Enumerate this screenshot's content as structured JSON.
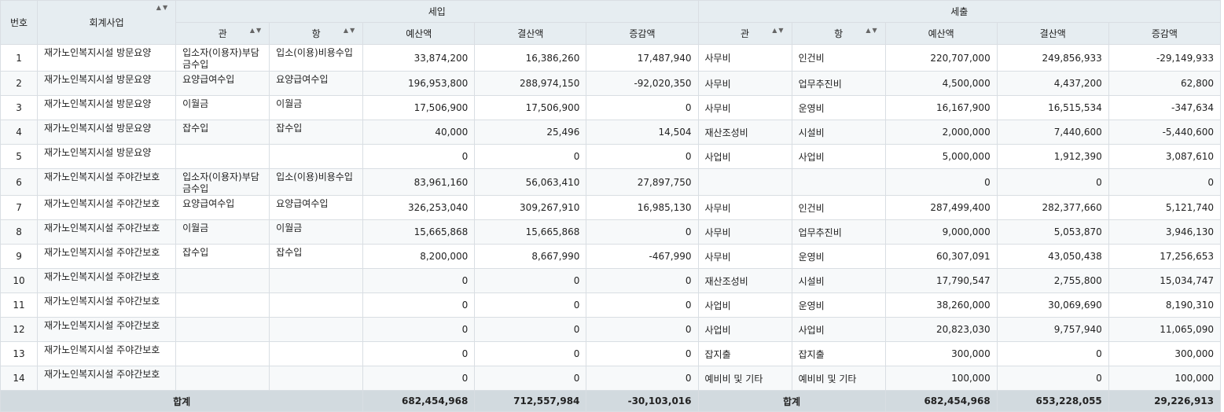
{
  "headers": {
    "no": "번호",
    "project": "회계사업",
    "income": "세입",
    "expense": "세출",
    "gwan": "관",
    "hang": "항",
    "budget": "예산액",
    "settle": "결산액",
    "diff": "증감액",
    "sort_icon": "▲",
    "filter_icon": "▼"
  },
  "rows": [
    {
      "no": "1",
      "project": "재가노인복지시설 방문요양",
      "in_gwan": "입소자(이용자)부담금수입",
      "in_hang": "입소(이용)비용수입",
      "in_budget": "33,874,200",
      "in_settle": "16,386,260",
      "in_diff": "17,487,940",
      "out_gwan": "사무비",
      "out_hang": "인건비",
      "out_budget": "220,707,000",
      "out_settle": "249,856,933",
      "out_diff": "-29,149,933"
    },
    {
      "no": "2",
      "project": "재가노인복지시설 방문요양",
      "in_gwan": "요양급여수입",
      "in_hang": "요양급여수입",
      "in_budget": "196,953,800",
      "in_settle": "288,974,150",
      "in_diff": "-92,020,350",
      "out_gwan": "사무비",
      "out_hang": "업무추진비",
      "out_budget": "4,500,000",
      "out_settle": "4,437,200",
      "out_diff": "62,800"
    },
    {
      "no": "3",
      "project": "재가노인복지시설 방문요양",
      "in_gwan": "이월금",
      "in_hang": "이월금",
      "in_budget": "17,506,900",
      "in_settle": "17,506,900",
      "in_diff": "0",
      "out_gwan": "사무비",
      "out_hang": "운영비",
      "out_budget": "16,167,900",
      "out_settle": "16,515,534",
      "out_diff": "-347,634"
    },
    {
      "no": "4",
      "project": "재가노인복지시설 방문요양",
      "in_gwan": "잡수입",
      "in_hang": "잡수입",
      "in_budget": "40,000",
      "in_settle": "25,496",
      "in_diff": "14,504",
      "out_gwan": "재산조성비",
      "out_hang": "시설비",
      "out_budget": "2,000,000",
      "out_settle": "7,440,600",
      "out_diff": "-5,440,600"
    },
    {
      "no": "5",
      "project": "재가노인복지시설 방문요양",
      "in_gwan": "",
      "in_hang": "",
      "in_budget": "0",
      "in_settle": "0",
      "in_diff": "0",
      "out_gwan": "사업비",
      "out_hang": " 사업비",
      "out_budget": "5,000,000",
      "out_settle": "1,912,390",
      "out_diff": "3,087,610"
    },
    {
      "no": "6",
      "project": "재가노인복지시설 주야간보호",
      "in_gwan": "입소자(이용자)부담금수입",
      "in_hang": "입소(이용)비용수입",
      "in_budget": "83,961,160",
      "in_settle": "56,063,410",
      "in_diff": "27,897,750",
      "out_gwan": "",
      "out_hang": "",
      "out_budget": "0",
      "out_settle": "0",
      "out_diff": "0"
    },
    {
      "no": "7",
      "project": "재가노인복지시설 주야간보호",
      "in_gwan": "요양급여수입",
      "in_hang": "요양급여수입",
      "in_budget": "326,253,040",
      "in_settle": "309,267,910",
      "in_diff": "16,985,130",
      "out_gwan": "사무비",
      "out_hang": "인건비",
      "out_budget": "287,499,400",
      "out_settle": "282,377,660",
      "out_diff": "5,121,740"
    },
    {
      "no": "8",
      "project": "재가노인복지시설 주야간보호",
      "in_gwan": "이월금",
      "in_hang": "이월금",
      "in_budget": "15,665,868",
      "in_settle": "15,665,868",
      "in_diff": "0",
      "out_gwan": "사무비",
      "out_hang": "업무추진비",
      "out_budget": "9,000,000",
      "out_settle": "5,053,870",
      "out_diff": "3,946,130"
    },
    {
      "no": "9",
      "project": "재가노인복지시설 주야간보호",
      "in_gwan": "잡수입",
      "in_hang": "잡수입",
      "in_budget": "8,200,000",
      "in_settle": "8,667,990",
      "in_diff": "-467,990",
      "out_gwan": "사무비",
      "out_hang": "운영비",
      "out_budget": "60,307,091",
      "out_settle": "43,050,438",
      "out_diff": "17,256,653"
    },
    {
      "no": "10",
      "project": "재가노인복지시설 주야간보호",
      "in_gwan": "",
      "in_hang": "",
      "in_budget": "0",
      "in_settle": "0",
      "in_diff": "0",
      "out_gwan": "재산조성비",
      "out_hang": "시설비",
      "out_budget": "17,790,547",
      "out_settle": "2,755,800",
      "out_diff": "15,034,747"
    },
    {
      "no": "11",
      "project": "재가노인복지시설 주야간보호",
      "in_gwan": "",
      "in_hang": "",
      "in_budget": "0",
      "in_settle": "0",
      "in_diff": "0",
      "out_gwan": "사업비",
      "out_hang": "운영비",
      "out_budget": "38,260,000",
      "out_settle": "30,069,690",
      "out_diff": "8,190,310"
    },
    {
      "no": "12",
      "project": "재가노인복지시설 주야간보호",
      "in_gwan": "",
      "in_hang": "",
      "in_budget": "0",
      "in_settle": "0",
      "in_diff": "0",
      "out_gwan": "사업비",
      "out_hang": " 사업비",
      "out_budget": "20,823,030",
      "out_settle": "9,757,940",
      "out_diff": "11,065,090"
    },
    {
      "no": "13",
      "project": "재가노인복지시설 주야간보호",
      "in_gwan": "",
      "in_hang": "",
      "in_budget": "0",
      "in_settle": "0",
      "in_diff": "0",
      "out_gwan": "잡지출",
      "out_hang": "잡지출",
      "out_budget": "300,000",
      "out_settle": "0",
      "out_diff": "300,000"
    },
    {
      "no": "14",
      "project": "재가노인복지시설 주야간보호",
      "in_gwan": "",
      "in_hang": "",
      "in_budget": "0",
      "in_settle": "0",
      "in_diff": "0",
      "out_gwan": "예비비 및 기타",
      "out_hang": "예비비 및 기타",
      "out_budget": "100,000",
      "out_settle": "0",
      "out_diff": "100,000"
    }
  ],
  "totals": {
    "label": "합계",
    "in_budget": "682,454,968",
    "in_settle": "712,557,984",
    "in_diff": "-30,103,016",
    "out_budget": "682,454,968",
    "out_settle": "653,228,055",
    "out_diff": "29,226,913"
  }
}
